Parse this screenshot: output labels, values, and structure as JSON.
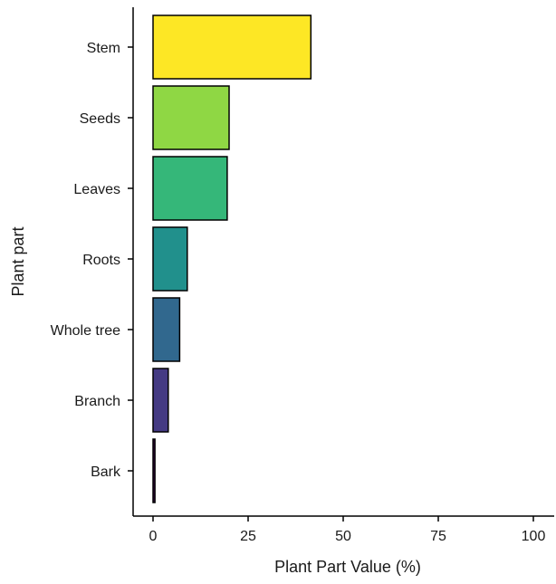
{
  "chart_data": {
    "type": "bar",
    "orientation": "horizontal",
    "categories": [
      "Stem",
      "Seeds",
      "Leaves",
      "Roots",
      "Whole tree",
      "Branch",
      "Bark"
    ],
    "values": [
      41.5,
      20,
      19.5,
      9,
      7,
      4,
      0.5
    ],
    "colors": [
      "#FDE725",
      "#8FD744",
      "#35B779",
      "#21908C",
      "#31688E",
      "#443A83",
      "#440154"
    ],
    "xlabel": "Plant Part Value (%)",
    "ylabel": "Plant part",
    "xlim": [
      0,
      100
    ],
    "xticks": [
      "0",
      "25",
      "50",
      "75",
      "100"
    ],
    "grid": false,
    "legend": false
  }
}
